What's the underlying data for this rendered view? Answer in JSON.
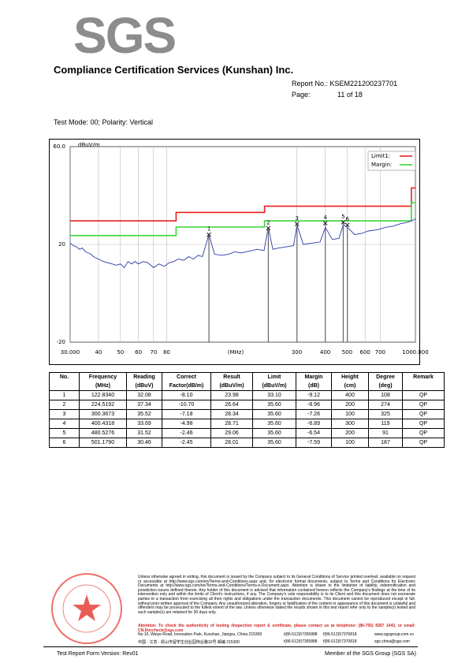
{
  "header": {
    "logo": "SGS",
    "company": "Compliance Certification Services (Kunshan) Inc.",
    "report_no": "Report No.: KSEM221200237701",
    "page_label": "Page:",
    "page_value": "11 of 18"
  },
  "test_mode": "Test Mode: 00; Polarity: Vertical",
  "chart_data": {
    "type": "line",
    "y_label": "dBuV/m",
    "x_label": "(MHz)",
    "log_x": true,
    "grid": true,
    "xlim": [
      30,
      1000
    ],
    "xticks": [
      {
        "value": 30,
        "label": "30.000"
      },
      40,
      50,
      60,
      70,
      80,
      300,
      400,
      500,
      600,
      700,
      {
        "value": 1000,
        "label": "1000.000"
      }
    ],
    "ylim": [
      -20,
      60
    ],
    "yticks": [
      {
        "value": 60,
        "label": "60.0"
      },
      20,
      -20
    ],
    "legend": "upper right",
    "series": [
      {
        "name": "Limit1:",
        "color": "#e8211f",
        "x": [
          30,
          88,
          88,
          216,
          216,
          960,
          960,
          1000
        ],
        "values": [
          29.6,
          29.6,
          33.1,
          33.1,
          35.6,
          35.6,
          43.1,
          43.1
        ]
      },
      {
        "name": "Margin:",
        "color": "#3ad43a",
        "x": [
          30,
          88,
          88,
          216,
          216,
          960,
          960,
          1000
        ],
        "values": [
          23.6,
          23.6,
          27.1,
          27.1,
          29.6,
          29.6,
          37.1,
          37.1
        ]
      },
      {
        "color": "#2a3aa8",
        "x": [
          30,
          31,
          32,
          33,
          34,
          35,
          36,
          37,
          38,
          39,
          40,
          42,
          44,
          46,
          48,
          50,
          52,
          54,
          56,
          58,
          60,
          63,
          66,
          70,
          74,
          78,
          82,
          86,
          90,
          95,
          100,
          105,
          110,
          115,
          122.8,
          130,
          140,
          150,
          160,
          170,
          180,
          190,
          200,
          215,
          224.5,
          235,
          250,
          270,
          290,
          300.4,
          320,
          350,
          380,
          400.4,
          430,
          460,
          480.5,
          501.2,
          540,
          580,
          620,
          680,
          740,
          800,
          860,
          920,
          980,
          1000
        ],
        "values": [
          20.5,
          19.5,
          19,
          18,
          18.5,
          17,
          16.5,
          16,
          15,
          14.5,
          14,
          13,
          12.5,
          12,
          11.5,
          12,
          10.5,
          13,
          12,
          13,
          12,
          13,
          12.5,
          10.5,
          12,
          11,
          12.5,
          13,
          14,
          13.5,
          15,
          14,
          15.5,
          15,
          24,
          16,
          15.5,
          16,
          17,
          16.5,
          17,
          17.5,
          18,
          17.5,
          27,
          18,
          18.5,
          19,
          19.5,
          28,
          20,
          20.5,
          21,
          27,
          22,
          22.5,
          28,
          27,
          24,
          24.5,
          25.5,
          26,
          27,
          27.5,
          28.5,
          29,
          30,
          30.5
        ]
      }
    ],
    "markers": [
      {
        "label": "1",
        "x": 122.834,
        "y": 23.98
      },
      {
        "label": "2",
        "x": 224.5192,
        "y": 26.64
      },
      {
        "label": "3",
        "x": 300.3673,
        "y": 28.34
      },
      {
        "label": "4",
        "x": 400.4318,
        "y": 28.71
      },
      {
        "label": "5",
        "x": 480.5276,
        "y": 29.06
      },
      {
        "label": "6",
        "x": 501.179,
        "y": 28.01
      }
    ]
  },
  "table": {
    "header": [
      {
        "title": "No."
      },
      {
        "title": "Frequency",
        "unit": "(MHz)"
      },
      {
        "title": "Reading",
        "unit": "(dBuV)"
      },
      {
        "title": "Correct",
        "unit": "Factor(dB/m)"
      },
      {
        "title": "Result",
        "unit": "(dBuV/m)"
      },
      {
        "title": "Limit",
        "unit": "(dBuV/m)"
      },
      {
        "title": "Margin",
        "unit": "(dB)"
      },
      {
        "title": "Height",
        "unit": "(cm)"
      },
      {
        "title": "Degree",
        "unit": "(deg)"
      },
      {
        "title": "Remark"
      }
    ],
    "rows": [
      [
        "1",
        "122.8340",
        "32.08",
        "-8.10",
        "23.98",
        "33.10",
        "-9.12",
        "400",
        "108",
        "QP"
      ],
      [
        "2",
        "224.5192",
        "37.34",
        "-10.70",
        "26.64",
        "35.60",
        "-8.96",
        "200",
        "274",
        "QP"
      ],
      [
        "3",
        "300.3673",
        "35.52",
        "-7.18",
        "28.34",
        "35.60",
        "-7.26",
        "100",
        "325",
        "QP"
      ],
      [
        "4",
        "400.4318",
        "33.69",
        "-4.98",
        "28.71",
        "35.60",
        "-6.89",
        "300",
        "119",
        "QP"
      ],
      [
        "5",
        "480.5276",
        "31.52",
        "-2.46",
        "29.06",
        "35.60",
        "-6.54",
        "200",
        "91",
        "QP"
      ],
      [
        "6",
        "501.1790",
        "30.46",
        "-2.45",
        "28.01",
        "35.60",
        "-7.59",
        "100",
        "187",
        "QP"
      ]
    ]
  },
  "footer": {
    "disclaimer": "Unless otherwise agreed in writing, this document is issued by the Company subject to its General Conditions of Service printed overleaf, available on request or accessible at http://www.sgs.com/en/Terms-and-Conditions.aspx and, for electronic format documents, subject to Terms and Conditions for Electronic Documents at http://www.sgs.com/en/Terms-and-Conditions/Terms-e-Document.aspx. Attention is drawn to the limitation of liability, indemnification and jurisdiction issues defined therein. Any holder of this document is advised that information contained hereon reflects the Company's findings at the time of its intervention only and within the limits of Client's instructions, if any. The Company's sole responsibility is to its Client and this document does not exonerate parties to a transaction from exercising all their rights and obligations under the transaction documents. This document cannot be reproduced except in full, without prior written approval of the Company. Any unauthorized alteration, forgery or falsification of the content or appearance of this document is unlawful and offenders may be prosecuted to the fullest extent of the law. Unless otherwise stated the results shown in this test report refer only to the sample(s) tested and such sample(s) are retained for 30 days only.",
    "attention": "Attention: To check the authenticity of testing /inspection report & certificate, please contact us at telephone: (86-755) 8307 1443, or email: CN.Doccheck@sgs.com",
    "address_en": "No.10, Weiye Road, Innovation Park, Kunshan, Jiangsu, China 215300",
    "address_cn": "中国 · 江苏 · 昆山市留学生创业园伟业路10号  邮编 215300",
    "tel": "t(86-512)57355888",
    "fax": "f(86-512)57370818",
    "web": "www.sgsgroup.com.cn",
    "email": "sgs.china@sgs.com",
    "form_version": "Test Report Form Version: Rev01",
    "member": "Member of the SGS Group (SGS SA)"
  }
}
